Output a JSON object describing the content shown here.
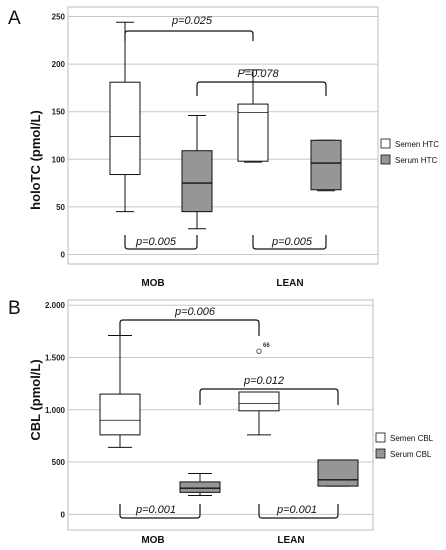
{
  "chart_data": [
    {
      "type": "box",
      "panel_label": "A",
      "ylabel": "holoTC (pmol/L)",
      "ylim": [
        -10,
        260
      ],
      "yticks": [
        0,
        50,
        100,
        150,
        200,
        250
      ],
      "ytick_labels": [
        "0",
        "50",
        "100",
        "150",
        "200",
        "250"
      ],
      "grid": true,
      "categories": [
        "MOB",
        "LEAN"
      ],
      "legend": {
        "placement": "right",
        "entries": [
          "Semen HTC",
          "Serum HTC"
        ]
      },
      "series": [
        {
          "name": "Semen HTC",
          "color": "#ffffff",
          "boxes": [
            {
              "category": "MOB",
              "min": 45,
              "q1": 84,
              "median": 124,
              "q3": 181,
              "max": 244
            },
            {
              "category": "LEAN",
              "min": 97,
              "q1": 98,
              "median": 149,
              "q3": 158,
              "max": 194
            }
          ]
        },
        {
          "name": "Serum HTC",
          "color": "#969696",
          "boxes": [
            {
              "category": "MOB",
              "min": 27,
              "q1": 45,
              "median": 75,
              "q3": 109,
              "max": 146
            },
            {
              "category": "LEAN",
              "min": 67,
              "q1": 68,
              "median": 96,
              "q3": 120,
              "max": 120
            }
          ]
        }
      ],
      "annotations": [
        {
          "text": "p=0.025",
          "from": "MOB Semen HTC",
          "to": "LEAN Semen HTC",
          "position": "top"
        },
        {
          "text": "P=0.078",
          "from": "MOB Serum HTC",
          "to": "LEAN Serum HTC",
          "position": "top"
        },
        {
          "text": "p=0.005",
          "from": "MOB Semen HTC",
          "to": "MOB Serum HTC",
          "position": "bottom"
        },
        {
          "text": "p=0.005",
          "from": "LEAN Semen HTC",
          "to": "LEAN Serum HTC",
          "position": "bottom"
        }
      ]
    },
    {
      "type": "box",
      "panel_label": "B",
      "ylabel": "CBL (pmol/L)",
      "ylim": [
        -150,
        2050
      ],
      "yticks": [
        0,
        500,
        1000,
        1500,
        2000
      ],
      "ytick_labels": [
        "0",
        "500",
        "1.000",
        "1.500",
        "2.000"
      ],
      "grid": true,
      "categories": [
        "MOB",
        "LEAN"
      ],
      "legend": {
        "placement": "right",
        "entries": [
          "Semen CBL",
          "Serum CBL"
        ]
      },
      "series": [
        {
          "name": "Semen CBL",
          "color": "#ffffff",
          "boxes": [
            {
              "category": "MOB",
              "min": 640,
              "q1": 760,
              "median": 900,
              "q3": 1150,
              "max": 1710
            },
            {
              "category": "LEAN",
              "min": 760,
              "q1": 990,
              "median": 1060,
              "q3": 1170,
              "max": 1170,
              "outliers": [
                {
                  "value": 1560,
                  "label": "66"
                }
              ]
            }
          ]
        },
        {
          "name": "Serum CBL",
          "color": "#969696",
          "boxes": [
            {
              "category": "MOB",
              "min": 180,
              "q1": 210,
              "median": 250,
              "q3": 310,
              "max": 390
            },
            {
              "category": "LEAN",
              "min": 270,
              "q1": 270,
              "median": 330,
              "q3": 520,
              "max": 520
            }
          ]
        }
      ],
      "annotations": [
        {
          "text": "p=0.006",
          "from": "MOB Semen CBL",
          "to": "LEAN Semen CBL",
          "position": "top"
        },
        {
          "text": "p=0.012",
          "from": "MOB Serum CBL",
          "to": "LEAN Serum CBL",
          "position": "top"
        },
        {
          "text": "p=0.001",
          "from": "MOB Semen CBL",
          "to": "MOB Serum CBL",
          "position": "bottom"
        },
        {
          "text": "p=0.001",
          "from": "LEAN Semen CBL",
          "to": "LEAN Serum CBL",
          "position": "bottom"
        }
      ]
    }
  ]
}
